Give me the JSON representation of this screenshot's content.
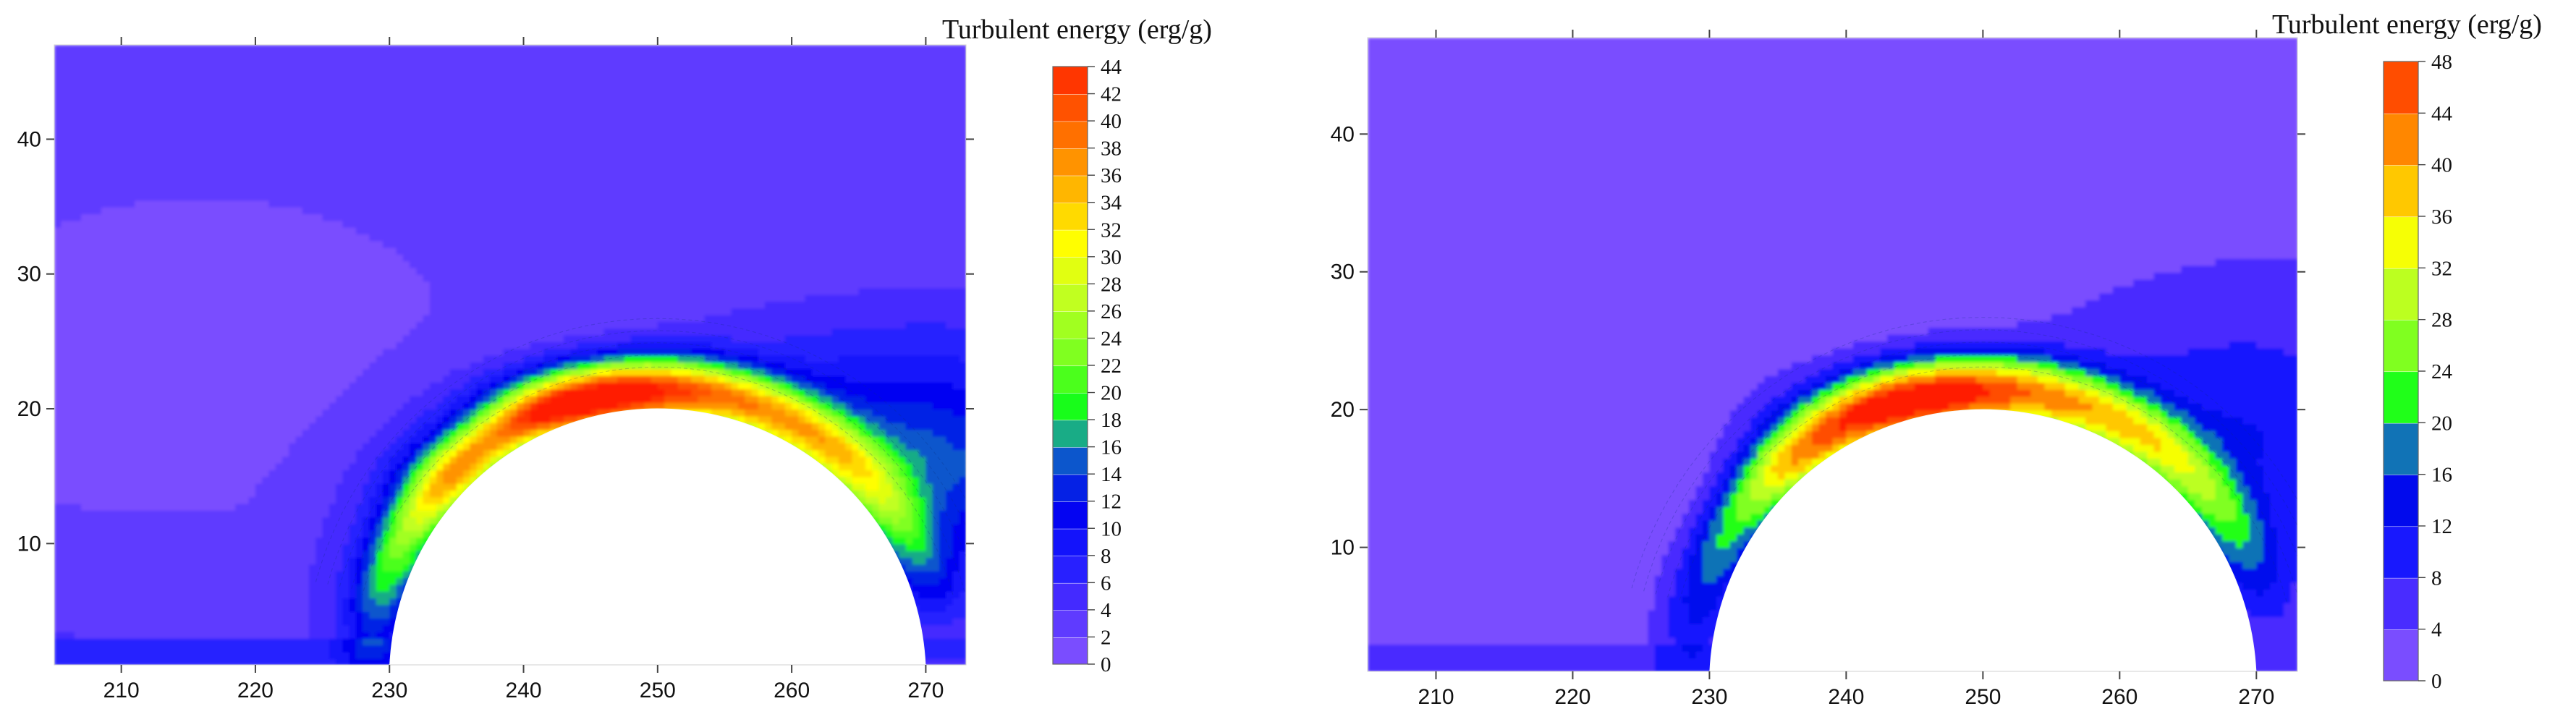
{
  "chart_data": [
    {
      "type": "contour",
      "title": "Turbulent energy (erg/g)",
      "xlim": [
        205,
        273
      ],
      "ylim": [
        1,
        47
      ],
      "x_ticks": [
        210,
        220,
        230,
        240,
        250,
        260,
        270
      ],
      "y_ticks": [
        10,
        20,
        30,
        40
      ],
      "colorbar": {
        "label": "Turbulent energy (erg/g)",
        "levels": [
          0,
          2,
          4,
          6,
          8,
          10,
          12,
          14,
          16,
          18,
          20,
          22,
          24,
          26,
          28,
          30,
          32,
          34,
          36,
          38,
          40,
          42,
          44
        ],
        "tick_labels": [
          "0",
          "2",
          "4",
          "6",
          "8",
          "10",
          "12",
          "14",
          "16",
          "18",
          "20",
          "22",
          "24",
          "26",
          "28",
          "30",
          "32",
          "34",
          "36",
          "38",
          "40",
          "42",
          "44"
        ]
      },
      "obstacle": {
        "shape": "semicircle",
        "center_x": 250,
        "base_y": 0,
        "top_y": 20
      },
      "peak": {
        "x": 245,
        "y": 20,
        "value": 44
      }
    },
    {
      "type": "contour",
      "title": "Turbulent energy (erg/g)",
      "xlim": [
        205,
        273
      ],
      "ylim": [
        1,
        47
      ],
      "x_ticks": [
        210,
        220,
        230,
        240,
        250,
        260,
        270
      ],
      "y_ticks": [
        10,
        20,
        30,
        40
      ],
      "colorbar": {
        "label": "Turbulent energy (erg/g)",
        "levels": [
          0,
          4,
          8,
          12,
          16,
          20,
          24,
          28,
          32,
          36,
          40,
          44,
          48
        ],
        "tick_labels": [
          "0",
          "4",
          "8",
          "12",
          "16",
          "20",
          "24",
          "28",
          "32",
          "36",
          "40",
          "44",
          "48"
        ]
      },
      "obstacle": {
        "shape": "semicircle",
        "center_x": 250,
        "base_y": 0,
        "top_y": 20
      },
      "peak": {
        "x": 245,
        "y": 20,
        "value": 48
      }
    }
  ],
  "palette": {
    "violet": "#7a4dff",
    "indigo": "#4b2dff",
    "blue": "#1a1aff",
    "mid_blue": "#0a46d8",
    "deep_blue": "#0000f0",
    "teal": "#19a68f",
    "green": "#18ff18",
    "lime": "#80ff20",
    "yellow_green": "#c8ff20",
    "yellow": "#ffff00",
    "orange": "#ff8f00",
    "red": "#ff1a00",
    "white": "#ffffff"
  }
}
